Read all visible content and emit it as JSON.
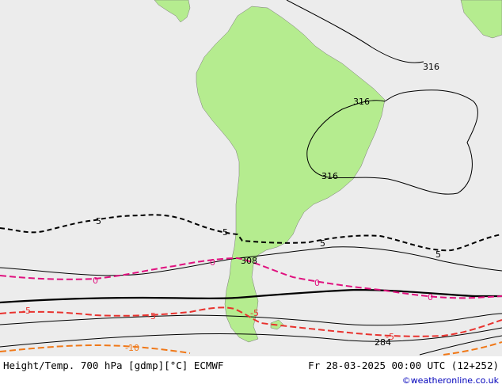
{
  "map": {
    "colors": {
      "background": "#ececec",
      "land": "#b5ec8f",
      "height_contour": "#000000",
      "temp_neg5": "#e8322e",
      "temp_0": "#e0117f",
      "temp_neg10": "#f07818",
      "dashed_black": "#000000"
    },
    "labels": {
      "h316_top": "316",
      "h316_mid": "316",
      "h316_low": "316",
      "h308": "308",
      "h284": "284",
      "t5_left": "5",
      "t5_mid": "5",
      "t5_right": "5",
      "t5_far": "5",
      "t0_left": "0",
      "t0_mid": "0",
      "t0_right": "0",
      "t0_far": "0",
      "tm5_left": "-5",
      "tm5_mid": "-5",
      "tm5_right": "-5",
      "tm5_far": "-5",
      "tm10": "-10"
    }
  },
  "footer": {
    "title": "Height/Temp. 700 hPa [gdmp][°C] ECMWF",
    "datetime": "Fr 28-03-2025 00:00 UTC (12+252)",
    "credit": "©weatheronline.co.uk"
  }
}
